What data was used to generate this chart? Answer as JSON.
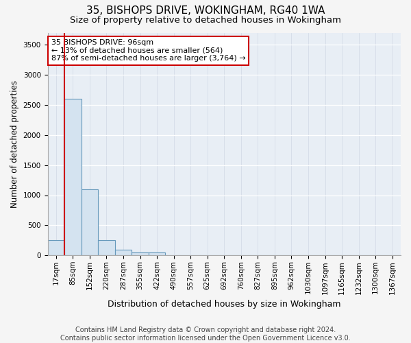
{
  "title": "35, BISHOPS DRIVE, WOKINGHAM, RG40 1WA",
  "subtitle": "Size of property relative to detached houses in Wokingham",
  "xlabel": "Distribution of detached houses by size in Wokingham",
  "ylabel": "Number of detached properties",
  "bar_labels": [
    "17sqm",
    "85sqm",
    "152sqm",
    "220sqm",
    "287sqm",
    "355sqm",
    "422sqm",
    "490sqm",
    "557sqm",
    "625sqm",
    "692sqm",
    "760sqm",
    "827sqm",
    "895sqm",
    "962sqm",
    "1030sqm",
    "1097sqm",
    "1165sqm",
    "1232sqm",
    "1300sqm",
    "1367sqm"
  ],
  "bar_values": [
    250,
    2600,
    1100,
    255,
    100,
    50,
    50,
    0,
    0,
    0,
    0,
    0,
    0,
    0,
    0,
    0,
    0,
    0,
    0,
    0,
    0
  ],
  "bar_color": "#d4e3f0",
  "bar_edge_color": "#6699bb",
  "vline_color": "#cc0000",
  "ylim": [
    0,
    3700
  ],
  "yticks": [
    0,
    500,
    1000,
    1500,
    2000,
    2500,
    3000,
    3500
  ],
  "annotation_text": "35 BISHOPS DRIVE: 96sqm\n← 13% of detached houses are smaller (564)\n87% of semi-detached houses are larger (3,764) →",
  "annotation_box_color": "#ffffff",
  "annotation_edge_color": "#cc0000",
  "footer_line1": "Contains HM Land Registry data © Crown copyright and database right 2024.",
  "footer_line2": "Contains public sector information licensed under the Open Government Licence v3.0.",
  "bg_color": "#e8eef5",
  "fig_bg_color": "#f5f5f5",
  "title_fontsize": 11,
  "subtitle_fontsize": 9.5,
  "tick_fontsize": 7.5,
  "ylabel_fontsize": 8.5,
  "xlabel_fontsize": 9,
  "annotation_fontsize": 8,
  "footer_fontsize": 7
}
